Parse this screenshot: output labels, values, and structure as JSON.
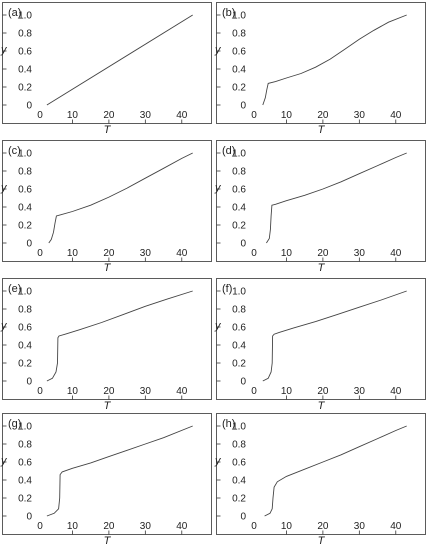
{
  "figure": {
    "background": "#ffffff",
    "curve_color": "#444444"
  },
  "chart_data": [
    {
      "type": "line",
      "panel": "(a)",
      "xlabel": "T",
      "ylabel": "y",
      "xlim": [
        0,
        45
      ],
      "ylim": [
        0,
        1.0
      ],
      "xticks": [
        "10",
        "20",
        "30",
        "40"
      ],
      "yticks": [
        "0",
        "0.2",
        "0.4",
        "0.6",
        "0.8",
        "1.0"
      ],
      "x": [
        3,
        43
      ],
      "y": [
        0,
        1.0
      ]
    },
    {
      "type": "line",
      "panel": "(b)",
      "xlabel": "T",
      "ylabel": "y",
      "xlim": [
        0,
        45
      ],
      "ylim": [
        0,
        1.0
      ],
      "xticks": [
        "10",
        "20",
        "30",
        "40"
      ],
      "yticks": [
        "0",
        "0.2",
        "0.4",
        "0.6",
        "0.8",
        "1.0"
      ],
      "x": [
        3.5,
        4.2,
        4.6,
        5.0,
        7,
        10,
        14,
        18,
        22,
        26,
        30,
        34,
        38,
        43
      ],
      "y": [
        0,
        0.08,
        0.17,
        0.24,
        0.26,
        0.3,
        0.35,
        0.42,
        0.51,
        0.62,
        0.73,
        0.83,
        0.92,
        1.0
      ]
    },
    {
      "type": "line",
      "panel": "(c)",
      "xlabel": "T",
      "ylabel": "y",
      "xlim": [
        0,
        45
      ],
      "ylim": [
        0,
        1.0
      ],
      "xticks": [
        "10",
        "20",
        "30",
        "40"
      ],
      "yticks": [
        "0",
        "0.2",
        "0.4",
        "0.6",
        "0.8",
        "1.0"
      ],
      "x": [
        3.5,
        4.2,
        4.8,
        5.2,
        5.6,
        6.5,
        10,
        15,
        20,
        25,
        30,
        35,
        40,
        43
      ],
      "y": [
        0,
        0.04,
        0.12,
        0.22,
        0.3,
        0.31,
        0.35,
        0.42,
        0.51,
        0.61,
        0.72,
        0.83,
        0.94,
        1.0
      ]
    },
    {
      "type": "line",
      "panel": "(d)",
      "xlabel": "T",
      "ylabel": "y",
      "xlim": [
        0,
        45
      ],
      "ylim": [
        0,
        1.0
      ],
      "xticks": [
        "10",
        "20",
        "30",
        "40"
      ],
      "yticks": [
        "0",
        "0.2",
        "0.4",
        "0.6",
        "0.8",
        "1.0"
      ],
      "x": [
        4.5,
        5.3,
        5.6,
        5.8,
        6.0,
        7,
        10,
        15,
        20,
        25,
        30,
        35,
        40,
        43
      ],
      "y": [
        0,
        0.05,
        0.15,
        0.3,
        0.42,
        0.43,
        0.47,
        0.53,
        0.6,
        0.68,
        0.77,
        0.86,
        0.95,
        1.0
      ]
    },
    {
      "type": "line",
      "panel": "(e)",
      "xlabel": "T",
      "ylabel": "y",
      "xlim": [
        0,
        45
      ],
      "ylim": [
        0,
        1.0
      ],
      "xticks": [
        "10",
        "20",
        "30",
        "40"
      ],
      "yticks": [
        "0",
        "0.2",
        "0.4",
        "0.6",
        "0.8",
        "1.0"
      ],
      "x": [
        3,
        4.5,
        5.5,
        5.9,
        6.0,
        6.3,
        8,
        12,
        18,
        24,
        30,
        36,
        43
      ],
      "y": [
        0,
        0.03,
        0.1,
        0.2,
        0.48,
        0.5,
        0.52,
        0.57,
        0.65,
        0.74,
        0.83,
        0.91,
        1.0
      ]
    },
    {
      "type": "line",
      "panel": "(f)",
      "xlabel": "T",
      "ylabel": "y",
      "xlim": [
        0,
        45
      ],
      "ylim": [
        0,
        1.0
      ],
      "xticks": [
        "10",
        "20",
        "30",
        "40"
      ],
      "yticks": [
        "0",
        "0.2",
        "0.4",
        "0.6",
        "0.8",
        "1.0"
      ],
      "x": [
        3.5,
        5.0,
        5.8,
        6.1,
        6.2,
        6.6,
        8,
        12,
        18,
        24,
        30,
        36,
        43
      ],
      "y": [
        0,
        0.03,
        0.1,
        0.2,
        0.5,
        0.52,
        0.54,
        0.59,
        0.66,
        0.74,
        0.82,
        0.9,
        1.0
      ]
    },
    {
      "type": "line",
      "panel": "(g)",
      "xlabel": "T",
      "ylabel": "y",
      "xlim": [
        0,
        45
      ],
      "ylim": [
        0,
        1.0
      ],
      "xticks": [
        "10",
        "20",
        "30",
        "40"
      ],
      "yticks": [
        "0",
        "0.2",
        "0.4",
        "0.6",
        "0.8",
        "1.0"
      ],
      "x": [
        3,
        5,
        6.2,
        6.5,
        6.6,
        7.2,
        10,
        15,
        20,
        25,
        30,
        35,
        43
      ],
      "y": [
        0,
        0.03,
        0.08,
        0.2,
        0.46,
        0.49,
        0.53,
        0.59,
        0.66,
        0.73,
        0.8,
        0.87,
        1.0
      ]
    },
    {
      "type": "line",
      "panel": "(h)",
      "xlabel": "T",
      "ylabel": "y",
      "xlim": [
        0,
        45
      ],
      "ylim": [
        0,
        1.0
      ],
      "xticks": [
        "10",
        "20",
        "30",
        "40"
      ],
      "yticks": [
        "0",
        "0.2",
        "0.4",
        "0.6",
        "0.8",
        "1.0"
      ],
      "x": [
        4,
        5.5,
        6.1,
        6.3,
        6.6,
        7.5,
        10,
        15,
        20,
        25,
        30,
        35,
        40,
        43
      ],
      "y": [
        0,
        0.03,
        0.08,
        0.2,
        0.32,
        0.38,
        0.44,
        0.52,
        0.6,
        0.68,
        0.77,
        0.86,
        0.95,
        1.0
      ]
    }
  ]
}
